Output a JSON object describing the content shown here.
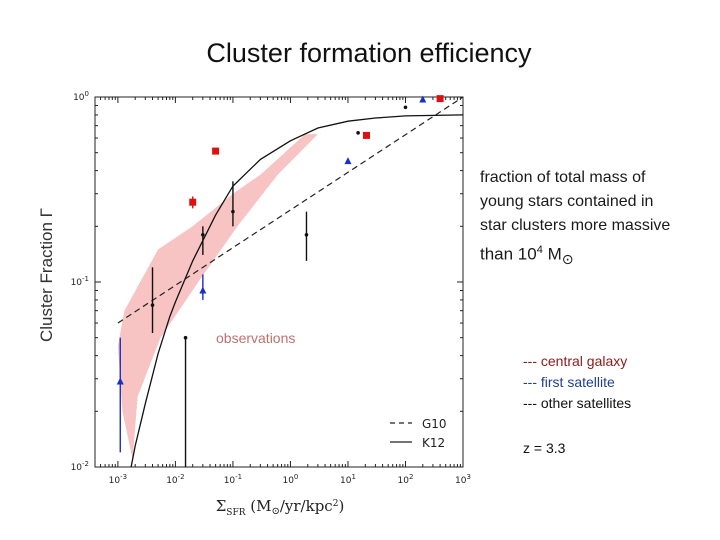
{
  "slide": {
    "title": "Cluster formation efficiency",
    "description_lines": [
      "fraction of total mass of",
      "young stars contained in",
      "star clusters more massive"
    ],
    "description_last_prefix": "than 10",
    "description_last_sup": "4",
    "description_last_suffix": " M",
    "description_last_symbol": "⊙",
    "legend_items": [
      {
        "label": "--- central galaxy",
        "color": "#8b1a1a"
      },
      {
        "label": "--- first satellite",
        "color": "#1f3f8f"
      },
      {
        "label": "--- other satellites",
        "color": "#111111"
      }
    ],
    "redshift": "z = 3.3"
  },
  "chart_data": {
    "type": "scatter",
    "ylabel": "Cluster Fraction Γ",
    "xlabel_main": "Σ",
    "xlabel_sub": "SFR",
    "xlabel_units": " (M",
    "xlabel_units_symbol": "⊙",
    "xlabel_units_end": "/yr/kpc",
    "xlabel_units_sup": "2",
    "xlabel_close": ")",
    "x_scale": "log",
    "y_scale": "log",
    "xlim": [
      0.0004,
      1000
    ],
    "ylim": [
      0.01,
      1
    ],
    "x_ticks": [
      {
        "value": 0.001,
        "base": "10",
        "exp": "-3"
      },
      {
        "value": 0.01,
        "base": "10",
        "exp": "-2"
      },
      {
        "value": 0.1,
        "base": "10",
        "exp": "-1"
      },
      {
        "value": 1,
        "base": "10",
        "exp": "0"
      },
      {
        "value": 10,
        "base": "10",
        "exp": "1"
      },
      {
        "value": 100,
        "base": "10",
        "exp": "2"
      },
      {
        "value": 1000,
        "base": "10",
        "exp": "3"
      }
    ],
    "y_ticks": [
      {
        "value": 0.01,
        "base": "10",
        "exp": "-2"
      },
      {
        "value": 0.1,
        "base": "10",
        "exp": "-1"
      },
      {
        "value": 1,
        "base": "10",
        "exp": "0"
      }
    ],
    "observations_label": "observations",
    "observations_color": "#f7c3c3",
    "observations_region": [
      [
        0.0018,
        0.011
      ],
      [
        0.0022,
        0.024
      ],
      [
        0.0055,
        0.05
      ],
      [
        0.025,
        0.1
      ],
      [
        0.12,
        0.2
      ],
      [
        0.6,
        0.38
      ],
      [
        3,
        0.63
      ],
      [
        1.8,
        0.63
      ],
      [
        0.3,
        0.38
      ],
      [
        0.1,
        0.3
      ],
      [
        0.02,
        0.2
      ],
      [
        0.005,
        0.15
      ],
      [
        0.0013,
        0.07
      ],
      [
        0.001,
        0.045
      ],
      [
        0.0012,
        0.02
      ]
    ],
    "legend": [
      {
        "label": "G10",
        "style": "dashed"
      },
      {
        "label": "K12",
        "style": "solid"
      }
    ],
    "model_G10": [
      [
        0.001,
        0.06
      ],
      [
        1000,
        1
      ]
    ],
    "model_K12": [
      [
        0.0017,
        0.01
      ],
      [
        0.002,
        0.013
      ],
      [
        0.003,
        0.022
      ],
      [
        0.005,
        0.041
      ],
      [
        0.008,
        0.065
      ],
      [
        0.01,
        0.078
      ],
      [
        0.02,
        0.13
      ],
      [
        0.05,
        0.23
      ],
      [
        0.1,
        0.33
      ],
      [
        0.3,
        0.46
      ],
      [
        1,
        0.58
      ],
      [
        3,
        0.68
      ],
      [
        10,
        0.74
      ],
      [
        30,
        0.77
      ],
      [
        100,
        0.79
      ],
      [
        1000,
        0.8
      ]
    ],
    "series": [
      {
        "name": "central galaxy",
        "color": "#dd1111",
        "marker": "square",
        "points": [
          {
            "x": 0.02,
            "y": 0.27,
            "ylo": 0.25,
            "yhi": 0.29
          },
          {
            "x": 0.05,
            "y": 0.51
          },
          {
            "x": 21,
            "y": 0.62
          },
          {
            "x": 400,
            "y": 0.98
          }
        ]
      },
      {
        "name": "first satellite",
        "color": "#1a2fc4",
        "marker": "triangle",
        "points": [
          {
            "x": 0.0011,
            "y": 0.029,
            "ylo": 0.012,
            "yhi": 0.05
          },
          {
            "x": 0.03,
            "y": 0.09,
            "ylo": 0.08,
            "yhi": 0.11
          },
          {
            "x": 10,
            "y": 0.45
          },
          {
            "x": 200,
            "y": 0.97
          }
        ]
      },
      {
        "name": "other satellites",
        "color": "#111111",
        "marker": "circle",
        "points": [
          {
            "x": 0.004,
            "y": 0.075,
            "ylo": 0.053,
            "yhi": 0.12
          },
          {
            "x": 0.015,
            "y": 0.05,
            "ylo": 0.01,
            "yhi": 0.05
          },
          {
            "x": 0.03,
            "y": 0.18,
            "ylo": 0.14,
            "yhi": 0.2
          },
          {
            "x": 0.1,
            "y": 0.24,
            "ylo": 0.2,
            "yhi": 0.35
          },
          {
            "x": 1.9,
            "y": 0.18,
            "ylo": 0.13,
            "yhi": 0.24
          },
          {
            "x": 15,
            "y": 0.64
          },
          {
            "x": 100,
            "y": 0.88
          }
        ]
      }
    ]
  }
}
